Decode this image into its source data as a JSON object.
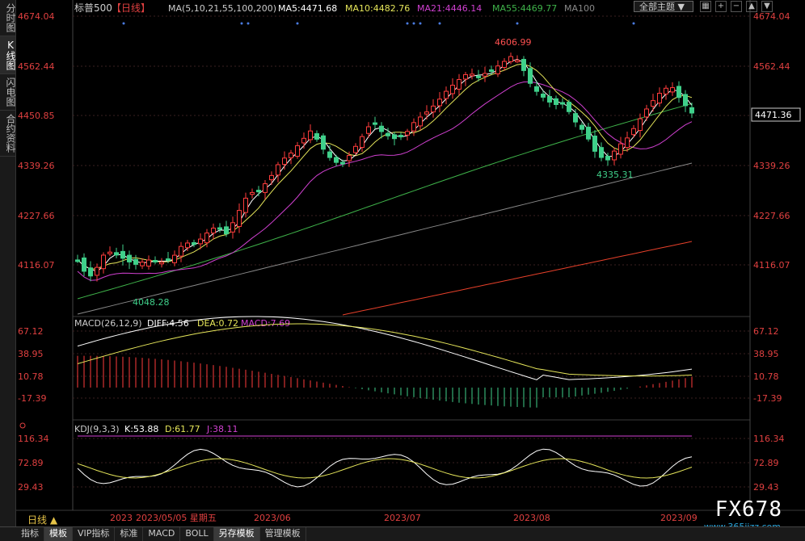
{
  "left_tabs": [
    "分时图",
    "K线图",
    "闪电图",
    "合约资料"
  ],
  "header": {
    "symbol": "标普500",
    "period": "【日线】",
    "ma_params": "MA(5,10,21,55,100,200)",
    "ma5": "MA5:4471.68",
    "ma10": "MA10:4482.76",
    "ma21": "MA21:4446.14",
    "ma55": "MA55:4469.77",
    "ma100": "MA100",
    "theme_label": "全部主题"
  },
  "colors": {
    "up": "#ff3c3c",
    "down": "#3fd08a",
    "ma5": "#ffffff",
    "ma10": "#e6e65a",
    "ma21": "#d040d0",
    "ma55": "#3fb34a",
    "ma100": "#888888",
    "ma200": "#e6402a",
    "axis_text": "#e04040"
  },
  "price_axis": {
    "labels": [
      "4674.04",
      "4562.44",
      "4450.85",
      "4339.26",
      "4227.66",
      "4116.07"
    ],
    "current": "4471.36"
  },
  "annotations": {
    "high": "4606.99",
    "low_left": "4048.28",
    "low_right": "4335.31"
  },
  "macd": {
    "params": "MACD(26,12,9)",
    "diff": "DIFF:4.56",
    "dea": "DEA:0.72",
    "macd": "MACD:7.69",
    "labels": [
      "67.12",
      "38.95",
      "10.78",
      "-17.39"
    ]
  },
  "kdj": {
    "params": "KDJ(9,3,3)",
    "k": "K:53.88",
    "d": "D:61.77",
    "j": "J:38.11",
    "labels": [
      "116.34",
      "72.89",
      "29.43"
    ]
  },
  "time_axis": {
    "labels": [
      "2023",
      "2023/05/05 星期五",
      "2023/06",
      "2023/07",
      "2023/08",
      "2023/09"
    ]
  },
  "period_button": "日线 ▲",
  "bottom_tabs": [
    "指标",
    "模板",
    "VIP指标",
    "标准",
    "MACD",
    "BOLL",
    "另存模板",
    "管理模板"
  ],
  "watermark": "FX678",
  "watermark_sub": "www.365jizz.com"
}
